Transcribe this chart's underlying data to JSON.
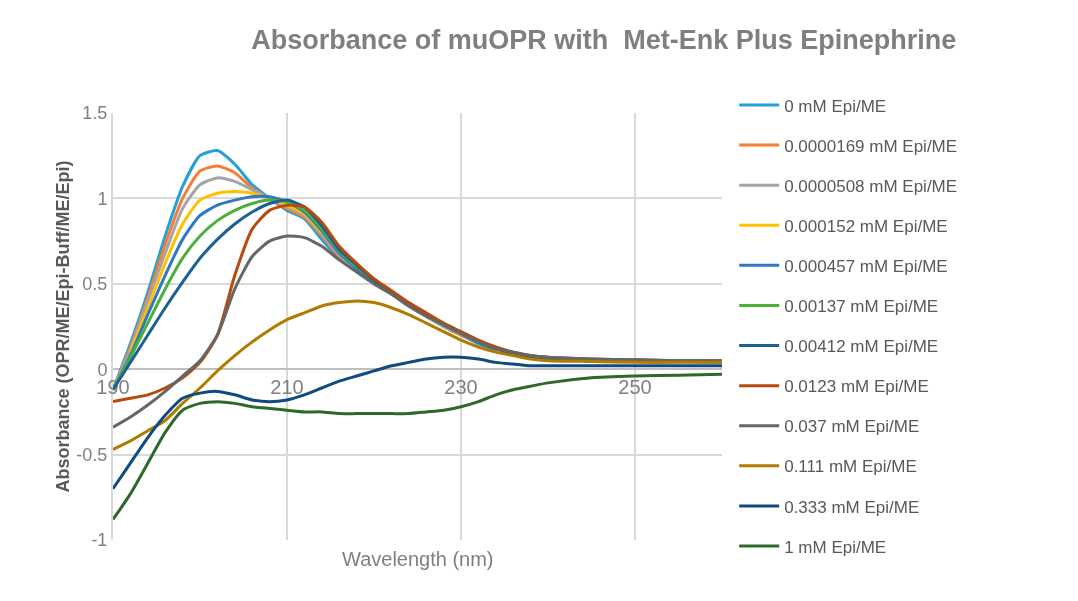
{
  "chart_data": {
    "type": "line",
    "title": "Absorbance of muOPR with  Met-Enk Plus Epinephrine",
    "xlabel": "Wavelength (nm)",
    "ylabel": "Absorbance (OPR/ME/Epi-Buff/ME/Epi)",
    "x": [
      190,
      192,
      194,
      196,
      198,
      200,
      202,
      204,
      206,
      208,
      210,
      212,
      214,
      216,
      218,
      220,
      222,
      224,
      226,
      228,
      230,
      232,
      234,
      236,
      238,
      240,
      245,
      250,
      255,
      260
    ],
    "xlim": [
      190,
      260
    ],
    "xticks": [
      190,
      210,
      230,
      250
    ],
    "ylim": [
      -1,
      1.5
    ],
    "yticks": [
      -1,
      -0.5,
      0,
      0.5,
      1,
      1.5
    ],
    "grid": true,
    "legend": "right",
    "marker": "none",
    "line_style": "solid",
    "series": [
      {
        "name": "0 mM Epi/ME",
        "color": "#22a0db",
        "values": [
          -0.12,
          0.15,
          0.45,
          0.78,
          1.07,
          1.25,
          1.28,
          1.2,
          1.08,
          1.0,
          0.93,
          0.88,
          0.76,
          0.65,
          0.57,
          0.5,
          0.44,
          0.37,
          0.31,
          0.25,
          0.2,
          0.15,
          0.11,
          null,
          null,
          null,
          null,
          null,
          null,
          null
        ]
      },
      {
        "name": "0.0000169 mM Epi/ME",
        "color": "#f47f31",
        "values": [
          -0.12,
          0.13,
          0.42,
          0.73,
          1.0,
          1.16,
          1.19,
          1.15,
          1.06,
          1.0,
          0.94,
          0.89,
          0.78,
          0.66,
          0.58,
          0.5,
          0.44,
          0.37,
          0.31,
          0.25,
          0.2,
          0.16,
          0.12,
          0.09,
          0.07,
          0.06,
          0.05,
          0.05,
          null,
          null
        ]
      },
      {
        "name": "0.0000508 mM Epi/ME",
        "color": "#a5a5a5",
        "values": [
          -0.12,
          0.12,
          0.4,
          0.68,
          0.94,
          1.08,
          1.12,
          1.1,
          1.05,
          1.0,
          0.95,
          0.9,
          0.79,
          0.67,
          0.58,
          0.5,
          0.44,
          0.37,
          0.31,
          0.25,
          0.21,
          0.16,
          null,
          0.09,
          0.07,
          0.06,
          0.05,
          null,
          null,
          null
        ]
      },
      {
        "name": "0.000152 mM Epi/ME",
        "color": "#ffc000",
        "values": [
          null,
          0.1,
          0.36,
          0.62,
          0.85,
          0.99,
          1.03,
          1.04,
          1.03,
          1.0,
          0.96,
          0.91,
          0.8,
          null,
          null,
          null,
          null,
          null,
          null,
          null,
          null,
          null,
          null,
          null,
          null,
          null,
          null,
          null,
          null,
          null
        ]
      },
      {
        "name": "0.000457 mM Epi/ME",
        "color": "#2e78c8",
        "values": [
          -0.12,
          0.08,
          0.32,
          0.55,
          0.76,
          0.9,
          0.96,
          0.99,
          1.01,
          1.01,
          0.98,
          0.92,
          0.81,
          0.68,
          0.59,
          0.51,
          0.45,
          0.38,
          0.32,
          0.26,
          0.21,
          0.16,
          0.12,
          0.09,
          null,
          null,
          null,
          null,
          null,
          null
        ]
      },
      {
        "name": "0.00137 mM Epi/ME",
        "color": "#4caf3c",
        "values": [
          -0.12,
          0.07,
          0.27,
          0.47,
          0.65,
          0.78,
          0.87,
          0.93,
          0.97,
          0.99,
          0.98,
          0.93,
          0.82,
          0.69,
          0.6,
          0.52,
          0.45,
          null,
          null,
          null,
          null,
          null,
          null,
          null,
          null,
          null,
          null,
          null,
          null,
          null
        ]
      },
      {
        "name": "0.00412 mM Epi/ME",
        "color": "#1b6196",
        "values": [
          -0.12,
          0.04,
          0.2,
          0.36,
          0.51,
          0.65,
          0.76,
          0.85,
          0.92,
          0.97,
          0.99,
          0.95,
          0.84,
          0.7,
          0.61,
          0.52,
          0.45,
          0.38,
          0.32,
          0.26,
          0.21,
          0.16,
          0.12,
          0.09,
          0.07,
          0.06,
          0.05,
          0.05,
          0.045,
          0.04
        ]
      },
      {
        "name": "0.0123 mM Epi/ME",
        "color": "#b84a0c",
        "values": [
          -0.19,
          -0.17,
          -0.15,
          -0.11,
          -0.05,
          0.04,
          0.2,
          0.55,
          0.82,
          0.93,
          0.96,
          0.95,
          0.86,
          0.72,
          0.62,
          0.53,
          0.46,
          0.39,
          0.33,
          0.27,
          0.22,
          0.17,
          0.13,
          0.1,
          0.08,
          0.07,
          0.06,
          0.055,
          0.05,
          0.05
        ]
      },
      {
        "name": "0.037 mM Epi/ME",
        "color": "#666666",
        "values": [
          -0.34,
          -0.28,
          -0.21,
          -0.13,
          -0.04,
          0.05,
          0.2,
          0.47,
          0.66,
          0.75,
          0.78,
          0.77,
          0.72,
          0.64,
          0.57,
          0.5,
          0.44,
          0.37,
          0.31,
          0.26,
          0.21,
          0.16,
          0.12,
          0.1,
          0.08,
          0.07,
          0.06,
          0.055,
          0.05,
          0.05
        ]
      },
      {
        "name": "0.111 mM Epi/ME",
        "color": "#b07c00",
        "values": [
          -0.47,
          -0.42,
          -0.36,
          -0.3,
          -0.2,
          -0.11,
          -0.01,
          0.08,
          0.16,
          0.23,
          0.29,
          0.33,
          0.37,
          0.39,
          0.4,
          0.39,
          0.36,
          0.32,
          0.27,
          0.22,
          0.17,
          0.13,
          0.1,
          0.08,
          0.06,
          0.05,
          0.045,
          0.04,
          0.04,
          0.04
        ]
      },
      {
        "name": "0.333 mM Epi/ME",
        "color": "#0f4a80",
        "values": [
          -0.7,
          -0.55,
          -0.4,
          -0.27,
          -0.17,
          -0.14,
          -0.13,
          -0.15,
          -0.18,
          -0.19,
          -0.18,
          -0.15,
          -0.11,
          -0.07,
          -0.04,
          -0.01,
          0.02,
          0.04,
          0.06,
          0.07,
          0.07,
          0.06,
          0.04,
          0.03,
          0.02,
          0.02,
          0.02,
          0.02,
          0.02,
          0.02
        ]
      },
      {
        "name": "1 mM Epi/ME",
        "color": "#2d6a2a",
        "values": [
          -0.88,
          -0.73,
          -0.55,
          -0.37,
          -0.24,
          -0.2,
          -0.19,
          -0.2,
          -0.22,
          -0.23,
          -0.24,
          -0.25,
          -0.25,
          -0.26,
          -0.26,
          -0.26,
          -0.26,
          -0.26,
          -0.25,
          -0.24,
          -0.22,
          -0.19,
          -0.15,
          -0.12,
          -0.1,
          -0.08,
          -0.05,
          -0.04,
          -0.035,
          -0.03
        ]
      }
    ]
  }
}
